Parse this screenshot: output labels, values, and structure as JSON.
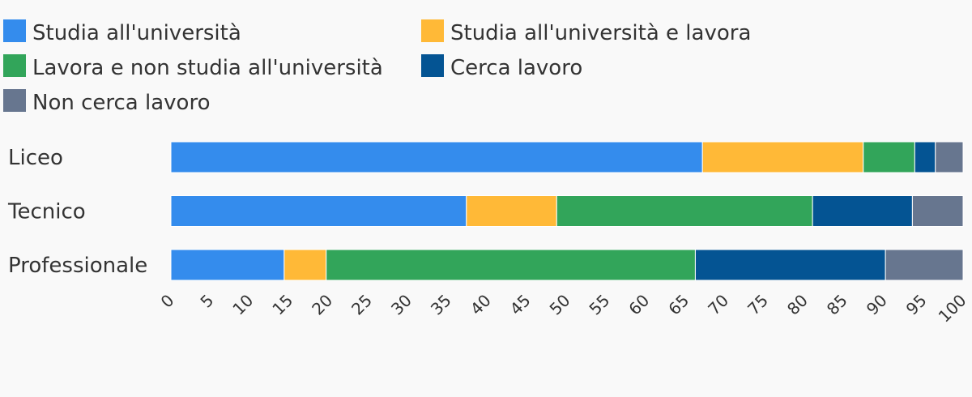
{
  "chart_data": {
    "type": "bar",
    "orientation": "horizontal",
    "stacked": true,
    "categories": [
      "Liceo",
      "Tecnico",
      "Professionale"
    ],
    "series": [
      {
        "name": "Studia all'università",
        "color": "#348CED",
        "values": [
          67.1,
          37.3,
          14.3
        ]
      },
      {
        "name": "Studia all'università e lavora",
        "color": "#FFB937",
        "values": [
          20.3,
          11.4,
          5.3
        ]
      },
      {
        "name": "Lavora e non studia all'università",
        "color": "#32A55A",
        "values": [
          6.5,
          32.3,
          46.6
        ]
      },
      {
        "name": "Cerca lavoro",
        "color": "#045493",
        "values": [
          2.6,
          12.6,
          24.0
        ]
      },
      {
        "name": "Non cerca lavoro",
        "color": "#67768F",
        "values": [
          3.5,
          6.4,
          9.8
        ]
      }
    ],
    "xlim": [
      0,
      100
    ],
    "x_ticks": [
      0,
      5,
      10,
      15,
      20,
      25,
      30,
      35,
      40,
      45,
      50,
      55,
      60,
      65,
      70,
      75,
      80,
      85,
      90,
      95,
      100
    ],
    "title": "",
    "xlabel": "",
    "ylabel": "",
    "legend_position": "top-left",
    "grid": false
  }
}
